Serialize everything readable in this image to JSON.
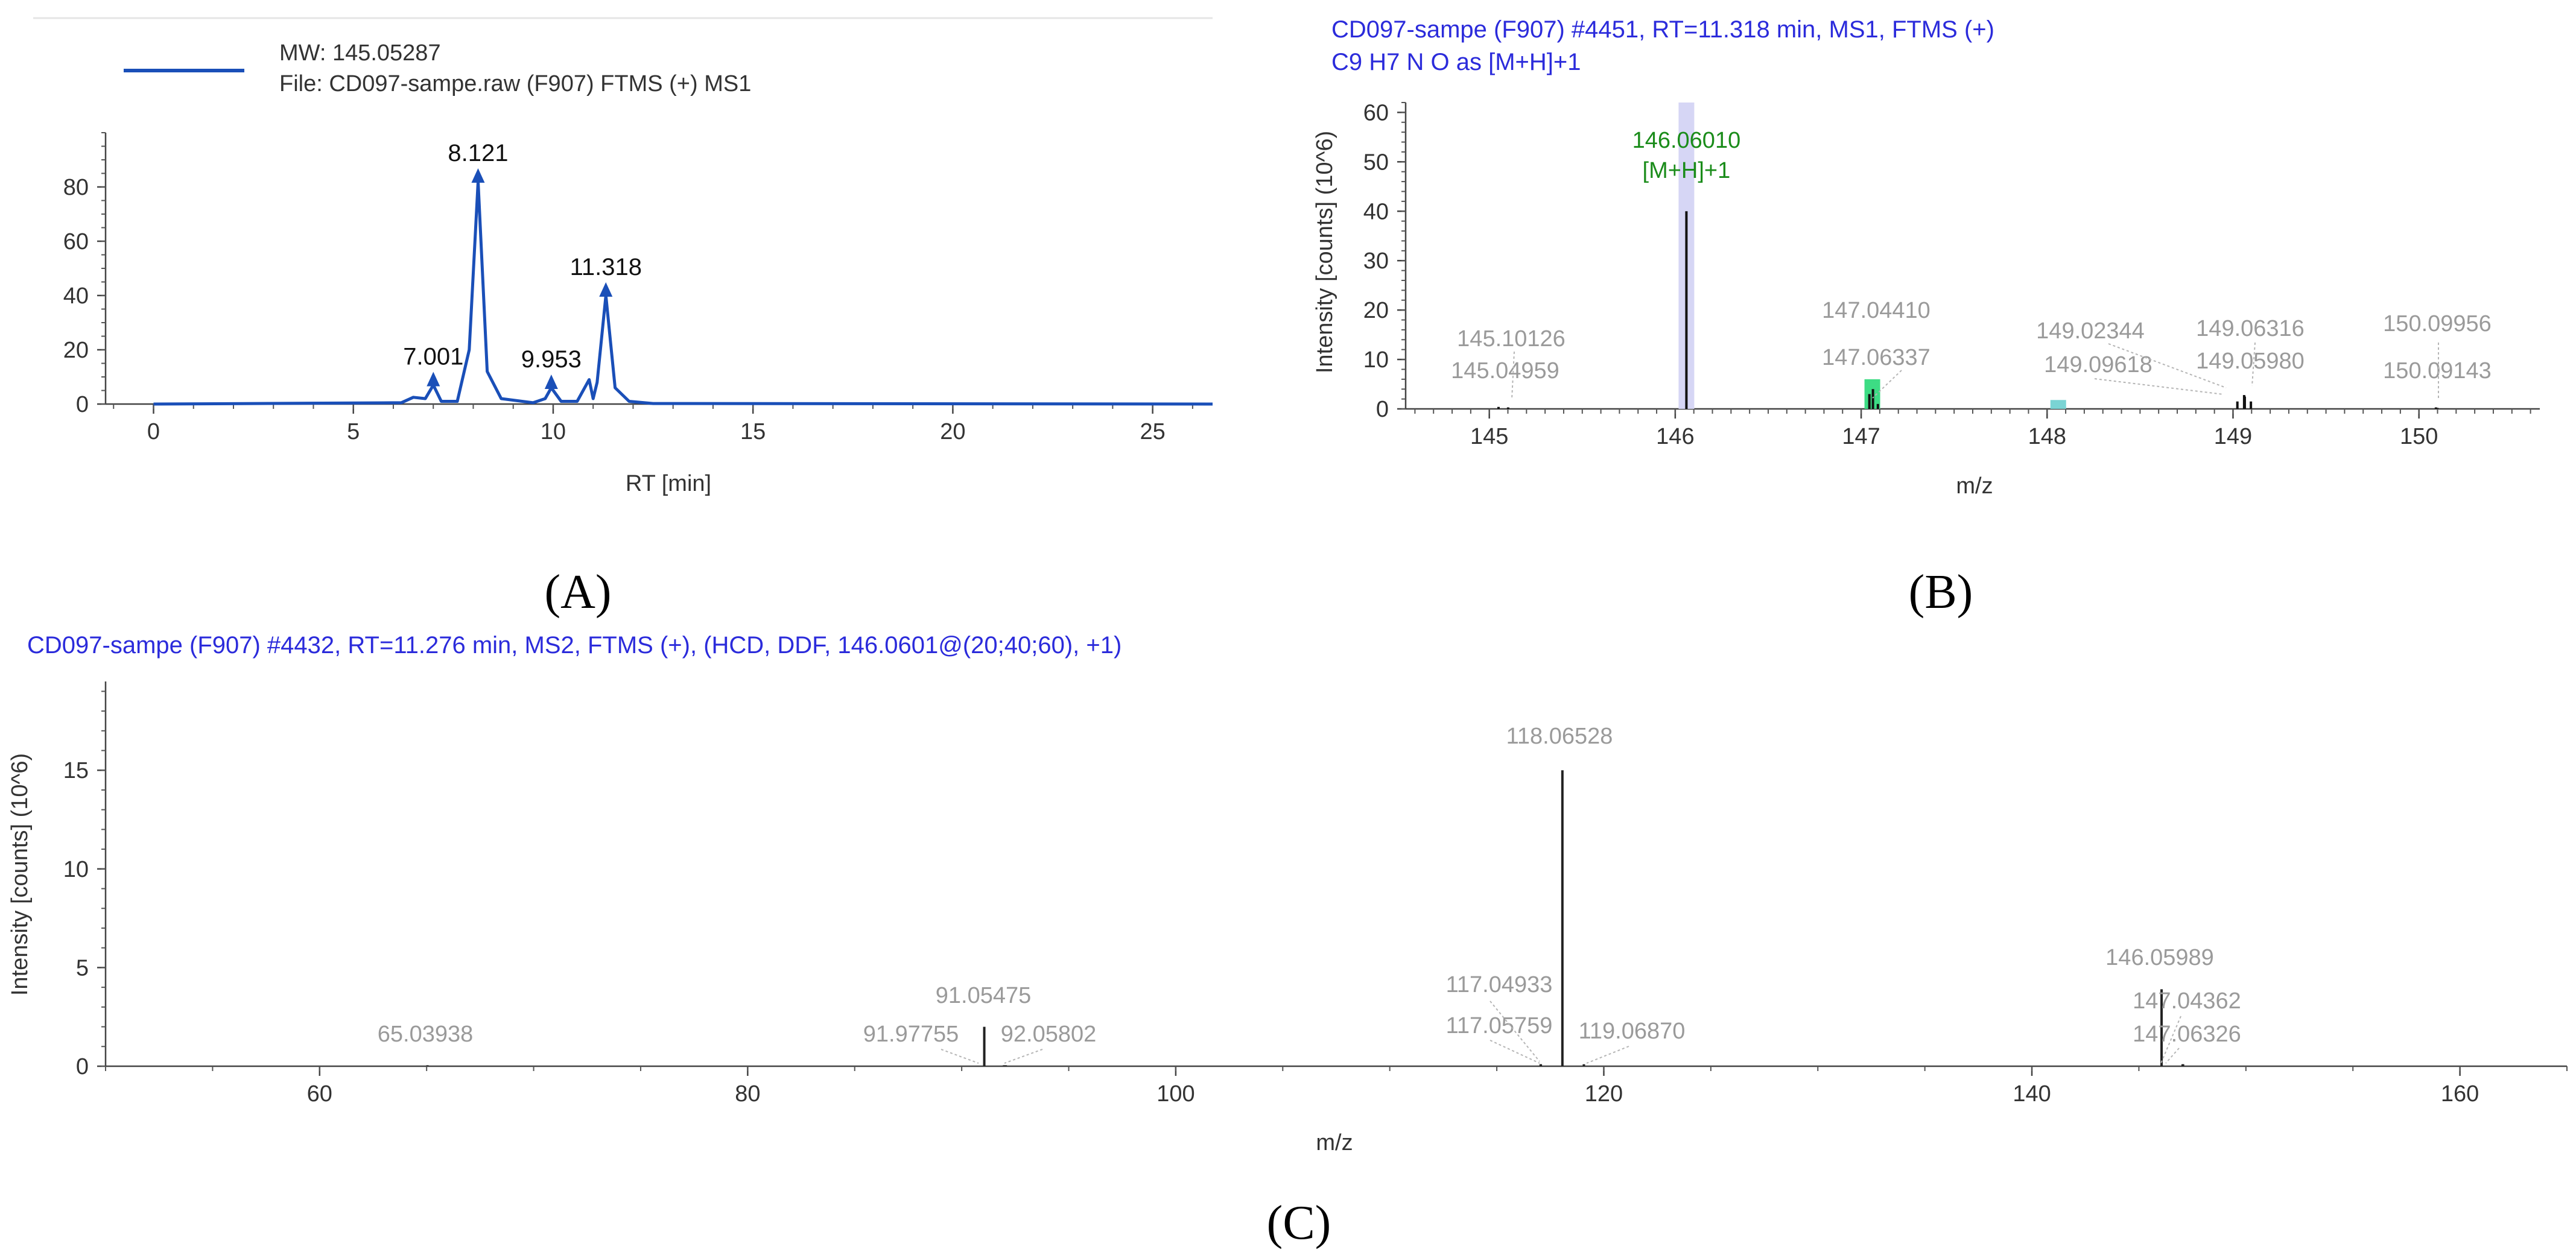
{
  "panel_labels": {
    "a": "(A)",
    "b": "(B)",
    "c": "(C)"
  },
  "panel_a": {
    "legend_mw": "MW: 145.05287",
    "legend_file": "File: CD097-sampe.raw (F907) FTMS (+) MS1",
    "line_color": "#1a4fb8"
  },
  "panel_b": {
    "header_line1": "CD097-sampe (F907) #4451, RT=11.318 min, MS1, FTMS (+)",
    "header_line2": "C9 H7 N O as [M+H]+1"
  },
  "panel_c": {
    "header": "CD097-sampe (F907) #4432, RT=11.276 min, MS2, FTMS (+), (HCD, DDF, 146.0601@(20;40;60), +1)"
  },
  "chart_data": [
    {
      "type": "line",
      "xlabel": "RT [min]",
      "ylabel": "",
      "xlim": [
        -1.2,
        26.5
      ],
      "ylim": [
        0,
        100
      ],
      "xticks": [
        0,
        5,
        10,
        15,
        20,
        25
      ],
      "yticks": [
        0,
        20,
        40,
        60,
        80
      ],
      "series": [
        {
          "name": "MW: 145.05287",
          "x": [
            0,
            6.2,
            6.5,
            6.8,
            7.001,
            7.2,
            7.6,
            7.9,
            8.121,
            8.35,
            8.7,
            9.5,
            9.8,
            9.953,
            10.2,
            10.6,
            10.9,
            11.0,
            11.1,
            11.318,
            11.55,
            11.9,
            12.5,
            26.5
          ],
          "y": [
            0,
            0.5,
            2.5,
            2,
            7,
            1,
            1,
            20,
            82,
            12,
            2,
            0.5,
            2,
            6,
            1,
            1,
            9,
            2,
            8,
            40,
            6,
            1,
            0.2,
            0
          ]
        }
      ],
      "peak_labels": [
        {
          "x": 7.001,
          "y": 7,
          "text": "7.001"
        },
        {
          "x": 8.121,
          "y": 82,
          "text": "8.121"
        },
        {
          "x": 9.953,
          "y": 6,
          "text": "9.953"
        },
        {
          "x": 11.318,
          "y": 40,
          "text": "11.318"
        }
      ],
      "grid": false
    },
    {
      "type": "bar",
      "xlabel": "m/z",
      "ylabel": "Intensity [counts] (10^6)",
      "xlim": [
        144.55,
        150.65
      ],
      "ylim": [
        0,
        62
      ],
      "xticks": [
        145,
        146,
        147,
        148,
        149,
        150
      ],
      "yticks": [
        0,
        10,
        20,
        30,
        40,
        50,
        60
      ],
      "sticks": [
        {
          "x": 145.04959,
          "y": 0.4
        },
        {
          "x": 145.10126,
          "y": 0.3
        },
        {
          "x": 146.0601,
          "y": 40
        },
        {
          "x": 147.0441,
          "y": 3
        },
        {
          "x": 147.06337,
          "y": 4
        },
        {
          "x": 147.09,
          "y": 1
        },
        {
          "x": 149.02344,
          "y": 1.5
        },
        {
          "x": 149.0598,
          "y": 2.8
        },
        {
          "x": 149.06316,
          "y": 2.5
        },
        {
          "x": 149.09618,
          "y": 1.5
        },
        {
          "x": 150.09143,
          "y": 0.3
        },
        {
          "x": 150.09956,
          "y": 0.2
        }
      ],
      "highlights": [
        {
          "x": 146.0601,
          "y": 62,
          "color": "#d6d6f5"
        },
        {
          "x": 147.06,
          "y": 6,
          "color": "#3ddc84"
        },
        {
          "x": 148.06,
          "y": 1.8,
          "color": "#7ad4d4"
        }
      ],
      "labels": [
        {
          "x": 146.0601,
          "text": "146.06010",
          "color": "green"
        },
        {
          "x": 146.0601,
          "text": "[M+H]+1",
          "color": "green"
        },
        {
          "x": 145.10126,
          "text": "145.10126"
        },
        {
          "x": 145.04959,
          "text": "145.04959"
        },
        {
          "x": 147.0441,
          "text": "147.04410"
        },
        {
          "x": 147.06337,
          "text": "147.06337"
        },
        {
          "x": 149.02344,
          "text": "149.02344"
        },
        {
          "x": 149.09618,
          "text": "149.09618"
        },
        {
          "x": 149.06316,
          "text": "149.06316"
        },
        {
          "x": 149.0598,
          "text": "149.05980"
        },
        {
          "x": 150.09956,
          "text": "150.09956"
        },
        {
          "x": 150.09143,
          "text": "150.09143"
        }
      ],
      "grid": false
    },
    {
      "type": "bar",
      "xlabel": "m/z",
      "ylabel": "Intensity [counts] (10^6)",
      "xlim": [
        50,
        165
      ],
      "ylim": [
        0,
        19.5
      ],
      "xticks": [
        60,
        80,
        100,
        120,
        140,
        160
      ],
      "yticks": [
        0,
        5,
        10,
        15
      ],
      "sticks": [
        {
          "x": 65.03938,
          "y": 0.05
        },
        {
          "x": 91.05475,
          "y": 2
        },
        {
          "x": 91.97755,
          "y": 0.05
        },
        {
          "x": 92.05802,
          "y": 0.05
        },
        {
          "x": 117.04933,
          "y": 0.1
        },
        {
          "x": 117.05759,
          "y": 0.1
        },
        {
          "x": 118.06528,
          "y": 15
        },
        {
          "x": 119.0687,
          "y": 0.1
        },
        {
          "x": 146.05989,
          "y": 3.9
        },
        {
          "x": 147.04362,
          "y": 0.1
        },
        {
          "x": 147.06326,
          "y": 0.1
        }
      ],
      "labels": [
        {
          "x": 65.03938,
          "text": "65.03938"
        },
        {
          "x": 91.05475,
          "text": "91.05475"
        },
        {
          "x": 91.97755,
          "text": "91.97755"
        },
        {
          "x": 92.05802,
          "text": "92.05802"
        },
        {
          "x": 117.04933,
          "text": "117.04933"
        },
        {
          "x": 117.05759,
          "text": "117.05759"
        },
        {
          "x": 118.06528,
          "text": "118.06528"
        },
        {
          "x": 119.0687,
          "text": "119.06870"
        },
        {
          "x": 146.05989,
          "text": "146.05989"
        },
        {
          "x": 147.04362,
          "text": "147.04362"
        },
        {
          "x": 147.06326,
          "text": "147.06326"
        }
      ],
      "grid": false
    }
  ]
}
